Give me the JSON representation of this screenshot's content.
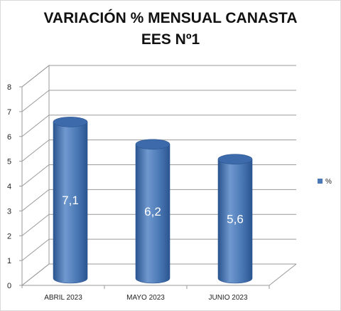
{
  "chart_data": {
    "type": "bar",
    "title_lines": [
      "VARIACIÓN % MENSUAL CANASTA",
      "EES Nº1"
    ],
    "categories": [
      "ABRIL 2023",
      "MAYO 2023",
      "JUNIO 2023"
    ],
    "series": [
      {
        "name": "%",
        "values": [
          7.1,
          6.2,
          5.6
        ],
        "data_labels": [
          "7,1",
          "6,2",
          "5,6"
        ]
      }
    ],
    "xlabel": "",
    "ylabel": "",
    "ylim": [
      0,
      8
    ],
    "yticks": [
      "0",
      "1",
      "2",
      "3",
      "4",
      "5",
      "6",
      "7",
      "8"
    ],
    "grid": true,
    "three_d": true,
    "bar_shape": "cylinder",
    "legend_position": "right",
    "colors": {
      "bar_body": "#4a78b5",
      "bar_light": "#6f98cf",
      "bar_dark": "#2b5590",
      "bar_top": "#3d6aaa",
      "grid": "#9a9a9a"
    }
  }
}
